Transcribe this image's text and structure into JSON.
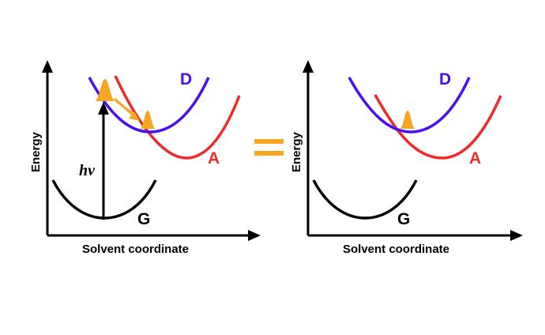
{
  "colors": {
    "donor": "#4b0ff0",
    "acceptor": "#ee2b2b",
    "ground": "#000000",
    "wavepacket": "#f5a623",
    "equals": "#f5a623",
    "axes": "#000000"
  },
  "equals_sign": "=",
  "panels": [
    {
      "xlabel": "Solvent coordinate",
      "ylabel": "Energy",
      "curves": {
        "donor": "D",
        "acceptor": "A",
        "ground": "G"
      },
      "excitation_label": "hv"
    },
    {
      "xlabel": "Solvent coordinate",
      "ylabel": "Energy",
      "curves": {
        "donor": "D",
        "acceptor": "A",
        "ground": "G"
      }
    }
  ]
}
